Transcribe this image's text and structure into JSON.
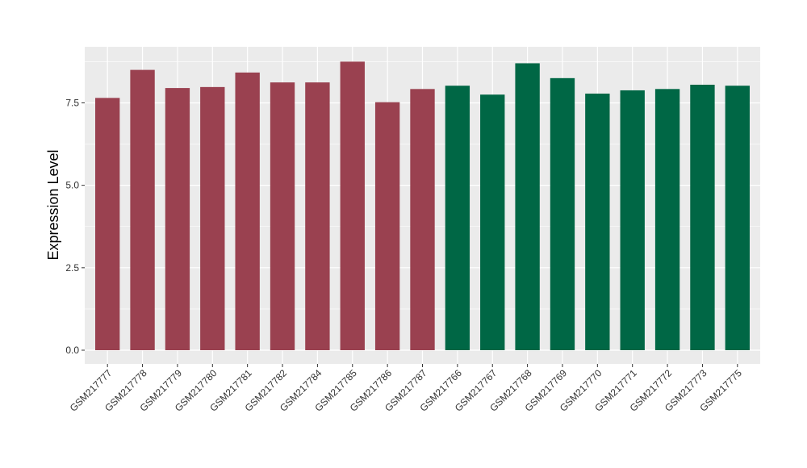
{
  "chart_data": {
    "type": "bar",
    "title": "",
    "xlabel": "",
    "ylabel": "Expression Level",
    "ylim": [
      0,
      9.2
    ],
    "yticks": [
      0.0,
      2.5,
      5.0,
      7.5
    ],
    "ytick_labels": [
      "0.0",
      "2.5",
      "5.0",
      "7.5"
    ],
    "grid": true,
    "legend": "none",
    "categories": [
      "GSM217777",
      "GSM217778",
      "GSM217779",
      "GSM217780",
      "GSM217781",
      "GSM217782",
      "GSM217784",
      "GSM217785",
      "GSM217786",
      "GSM217787",
      "GSM217766",
      "GSM217767",
      "GSM217768",
      "GSM217769",
      "GSM217770",
      "GSM217771",
      "GSM217772",
      "GSM217773",
      "GSM217775"
    ],
    "values": [
      7.65,
      8.5,
      7.95,
      7.98,
      8.42,
      8.12,
      8.12,
      8.75,
      7.52,
      7.92,
      8.02,
      7.75,
      8.7,
      8.25,
      7.78,
      7.88,
      7.92,
      8.05,
      8.02
    ],
    "groups": [
      1,
      1,
      1,
      1,
      1,
      1,
      1,
      1,
      1,
      1,
      2,
      2,
      2,
      2,
      2,
      2,
      2,
      2,
      2
    ],
    "group_colors": {
      "1": "#9a4150",
      "2": "#006745"
    },
    "panel_background": "#ebebeb",
    "grid_color": "#ffffff"
  }
}
